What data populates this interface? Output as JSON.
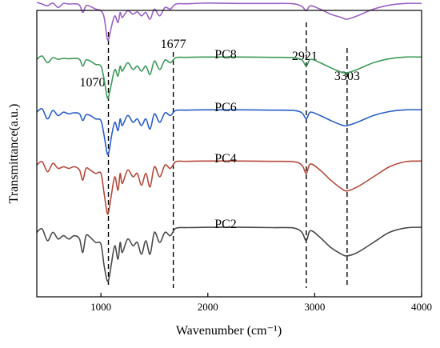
{
  "chart_data": {
    "type": "line",
    "title": "",
    "xlabel": "Wavenumber (cm⁻¹)",
    "ylabel": "Transmittance(a.u.)",
    "xlim": [
      400,
      4000
    ],
    "xticks": [
      1000,
      2000,
      3000,
      4000
    ],
    "x_tick_labels": [
      "1000",
      "2000",
      "3000",
      "4000"
    ],
    "y_ticks_shown": false,
    "grid": false,
    "reference_lines": [
      {
        "x": 1070,
        "label": "1070"
      },
      {
        "x": 1677,
        "label": "1677"
      },
      {
        "x": 2921,
        "label": "2921"
      },
      {
        "x": 3303,
        "label": "3303"
      }
    ],
    "series": [
      {
        "name": "",
        "color": "#9b62c7",
        "x": [
          400,
          450,
          500,
          550,
          600,
          650,
          700,
          750,
          800,
          830,
          860,
          900,
          950,
          1000,
          1030,
          1060,
          1080,
          1100,
          1130,
          1160,
          1180,
          1200,
          1250,
          1300,
          1340,
          1380,
          1420,
          1460,
          1500,
          1550,
          1600,
          1650,
          1700,
          1800,
          2000,
          2300,
          2600,
          2800,
          2880,
          2921,
          2960,
          3050,
          3150,
          3250,
          3303,
          3400,
          3550,
          3700,
          3850,
          4000
        ],
        "y": [
          0.5,
          0.45,
          0.4,
          0.48,
          0.35,
          0.47,
          0.45,
          0.46,
          0.42,
          0.2,
          0.4,
          0.38,
          0.3,
          0.25,
          0.05,
          -0.6,
          -0.5,
          -0.2,
          0.1,
          -0.1,
          0.2,
          0.05,
          0.25,
          0.15,
          0.22,
          0.1,
          0.2,
          0.0,
          0.3,
          0.1,
          0.35,
          0.3,
          0.45,
          0.46,
          0.48,
          0.47,
          0.47,
          0.46,
          0.38,
          0.25,
          0.4,
          0.3,
          0.15,
          0.05,
          0.0,
          0.1,
          0.3,
          0.42,
          0.47,
          0.47
        ]
      },
      {
        "name": "PC8",
        "color": "#3e9a5a",
        "x": [
          400,
          450,
          500,
          550,
          600,
          650,
          700,
          750,
          800,
          830,
          860,
          900,
          950,
          1000,
          1030,
          1060,
          1080,
          1100,
          1130,
          1160,
          1180,
          1200,
          1250,
          1300,
          1340,
          1380,
          1420,
          1460,
          1500,
          1550,
          1600,
          1650,
          1700,
          1800,
          2000,
          2300,
          2600,
          2800,
          2880,
          2921,
          2960,
          3050,
          3150,
          3250,
          3303,
          3400,
          3550,
          3700,
          3850,
          4000
        ],
        "y": [
          0.4,
          0.5,
          0.3,
          0.45,
          0.4,
          0.43,
          0.42,
          0.43,
          0.4,
          0.2,
          0.38,
          0.35,
          0.25,
          0.2,
          -0.2,
          -0.75,
          -0.6,
          -0.3,
          0.1,
          -0.1,
          0.2,
          0.05,
          0.3,
          0.1,
          0.2,
          0.05,
          0.2,
          -0.05,
          0.35,
          0.1,
          0.38,
          0.3,
          0.45,
          0.46,
          0.47,
          0.47,
          0.46,
          0.45,
          0.38,
          0.2,
          0.4,
          0.3,
          0.15,
          0.02,
          0.0,
          0.1,
          0.3,
          0.42,
          0.47,
          0.47
        ]
      },
      {
        "name": "PC6",
        "color": "#2a5fc6",
        "x": [
          400,
          450,
          500,
          550,
          600,
          650,
          700,
          750,
          800,
          830,
          860,
          900,
          950,
          1000,
          1030,
          1060,
          1080,
          1100,
          1130,
          1160,
          1180,
          1200,
          1250,
          1300,
          1340,
          1380,
          1420,
          1460,
          1500,
          1550,
          1600,
          1650,
          1700,
          1800,
          2000,
          2300,
          2600,
          2800,
          2880,
          2921,
          2960,
          3050,
          3150,
          3250,
          3303,
          3400,
          3550,
          3700,
          3850,
          4000
        ],
        "y": [
          0.4,
          0.5,
          0.2,
          0.45,
          0.3,
          0.4,
          0.35,
          0.38,
          0.35,
          0.15,
          0.32,
          0.3,
          0.2,
          0.15,
          -0.3,
          -0.85,
          -0.7,
          -0.3,
          0.1,
          -0.15,
          0.2,
          0.0,
          0.3,
          0.1,
          0.2,
          0.0,
          0.2,
          -0.1,
          0.35,
          0.1,
          0.38,
          0.3,
          0.45,
          0.46,
          0.47,
          0.47,
          0.46,
          0.45,
          0.38,
          0.2,
          0.4,
          0.3,
          0.15,
          0.02,
          0.0,
          0.1,
          0.3,
          0.42,
          0.47,
          0.47
        ]
      },
      {
        "name": "PC4",
        "color": "#b54a3c",
        "x": [
          400,
          450,
          500,
          550,
          600,
          650,
          700,
          750,
          800,
          830,
          860,
          900,
          950,
          1000,
          1030,
          1060,
          1080,
          1100,
          1130,
          1160,
          1180,
          1200,
          1250,
          1300,
          1340,
          1380,
          1420,
          1460,
          1500,
          1550,
          1600,
          1650,
          1700,
          1800,
          2000,
          2300,
          2600,
          2800,
          2880,
          2921,
          2960,
          3050,
          3150,
          3250,
          3303,
          3400,
          3550,
          3700,
          3850,
          4000
        ],
        "y": [
          0.35,
          0.45,
          0.15,
          0.4,
          0.25,
          0.3,
          0.25,
          0.3,
          0.2,
          -0.1,
          0.25,
          0.2,
          0.1,
          0.1,
          -0.5,
          -1.1,
          -0.9,
          -0.5,
          0.0,
          -0.4,
          0.1,
          -0.2,
          0.2,
          0.0,
          0.1,
          -0.25,
          0.1,
          -0.3,
          0.3,
          0.0,
          0.35,
          0.25,
          0.45,
          0.46,
          0.47,
          0.47,
          0.46,
          0.45,
          0.35,
          0.1,
          0.38,
          0.2,
          -0.1,
          -0.35,
          -0.42,
          -0.3,
          0.0,
          0.3,
          0.45,
          0.47
        ]
      },
      {
        "name": "PC2",
        "color": "#4a4a4a",
        "x": [
          400,
          450,
          500,
          550,
          600,
          650,
          700,
          750,
          800,
          830,
          860,
          900,
          950,
          1000,
          1030,
          1060,
          1080,
          1100,
          1130,
          1160,
          1180,
          1200,
          1250,
          1300,
          1340,
          1380,
          1420,
          1460,
          1500,
          1550,
          1600,
          1650,
          1700,
          1800,
          2000,
          2300,
          2600,
          2800,
          2880,
          2921,
          2960,
          3050,
          3150,
          3250,
          3303,
          3400,
          3550,
          3700,
          3850,
          4000
        ],
        "y": [
          0.3,
          0.4,
          0.05,
          0.3,
          0.1,
          0.2,
          0.1,
          0.2,
          0.1,
          -0.3,
          0.2,
          0.15,
          0.0,
          -0.05,
          -0.7,
          -1.15,
          -1.0,
          -0.6,
          -0.1,
          -0.5,
          0.0,
          -0.3,
          0.1,
          -0.1,
          0.0,
          -0.35,
          0.05,
          -0.35,
          0.3,
          0.0,
          0.3,
          0.2,
          0.42,
          0.44,
          0.45,
          0.45,
          0.44,
          0.43,
          0.3,
          0.05,
          0.35,
          0.15,
          -0.15,
          -0.35,
          -0.4,
          -0.3,
          0.0,
          0.3,
          0.43,
          0.45
        ]
      }
    ],
    "series_label_positions": "above-curve-center"
  }
}
